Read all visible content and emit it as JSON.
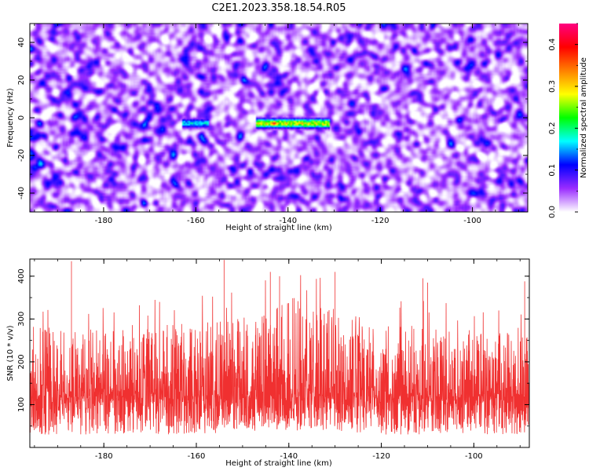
{
  "figure": {
    "title": "C2E1.2023.358.18.54.R05"
  },
  "chart_data": [
    {
      "type": "heatmap",
      "xlabel": "Height of straight line (km)",
      "ylabel": "Frequency (Hz)",
      "xlim": [
        -196,
        -88
      ],
      "ylim": [
        -50,
        50
      ],
      "xticks": [
        -180,
        -160,
        -140,
        -120,
        -100
      ],
      "yticks": [
        -40,
        -20,
        0,
        20,
        40
      ],
      "colorbar": {
        "label": "Normalized spectral amplitude",
        "range": [
          0.0,
          0.45
        ],
        "ticks": [
          0.0,
          0.1,
          0.2,
          0.3,
          0.4
        ],
        "colors": [
          "#ffffff",
          "#9a2cff",
          "#0000ff",
          "#00ffff",
          "#00ff00",
          "#ffff00",
          "#ff8000",
          "#ff0000",
          "#ff0080"
        ]
      },
      "signal_band": {
        "freq": -3,
        "segments": [
          {
            "x": [
              -163,
              -157
            ],
            "amplitude": 0.18
          },
          {
            "x": [
              -147,
              -131
            ],
            "amplitude": 0.3
          }
        ],
        "peak": {
          "x": -143,
          "freq": -3,
          "amplitude": 0.42
        }
      },
      "grid": false
    },
    {
      "type": "line",
      "xlabel": "Height of straight line (km)",
      "ylabel": "SNR (10 * v/v)",
      "xlim": [
        -196,
        -88
      ],
      "ylim": [
        0,
        440
      ],
      "xticks": [
        -180,
        -160,
        -140,
        -120,
        -100
      ],
      "yticks": [
        100,
        200,
        300,
        400
      ],
      "series_color": "#f03030",
      "baseline": 120,
      "envelope_approx": [
        {
          "x": -196,
          "lo": 30,
          "hi": 310
        },
        {
          "x": -160,
          "lo": 30,
          "hi": 320
        },
        {
          "x": -146,
          "lo": 40,
          "hi": 350
        },
        {
          "x": -140,
          "lo": 40,
          "hi": 400
        },
        {
          "x": -120,
          "lo": 30,
          "hi": 320
        },
        {
          "x": -88,
          "lo": 30,
          "hi": 290
        }
      ],
      "peaks": [
        {
          "x": -187,
          "y": 435
        },
        {
          "x": -154,
          "y": 438
        },
        {
          "x": -144,
          "y": 410
        },
        {
          "x": -142,
          "y": 400
        },
        {
          "x": -130,
          "y": 410
        },
        {
          "x": -111,
          "y": 395
        },
        {
          "x": -110,
          "y": 385
        },
        {
          "x": -89,
          "y": 388
        }
      ],
      "grid": false
    }
  ]
}
